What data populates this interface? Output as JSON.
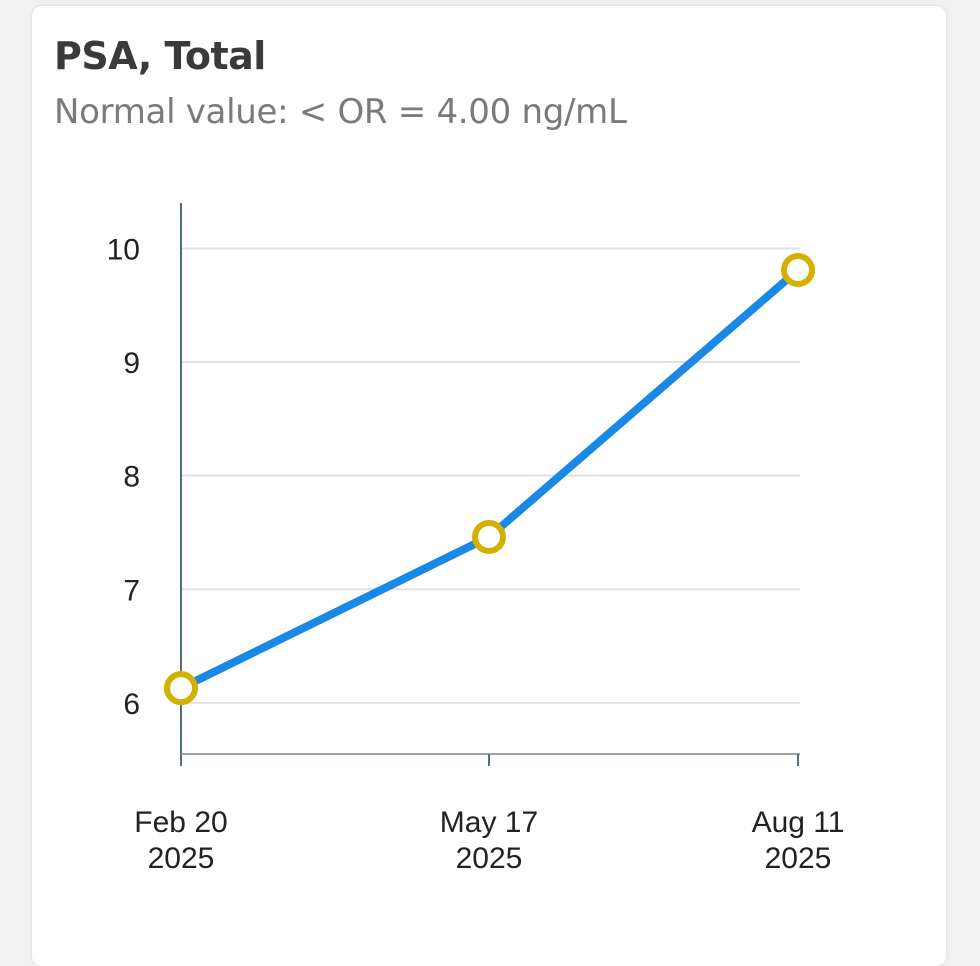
{
  "card": {
    "title": "PSA, Total",
    "subtitle": "Normal value: < OR = 4.00 ng/mL"
  },
  "chart_data": {
    "type": "line",
    "title": "PSA, Total",
    "subtitle": "Normal value: < OR = 4.00 ng/mL",
    "xlabel": "",
    "ylabel": "",
    "x": [
      [
        "Feb 20",
        "2025"
      ],
      [
        "May 17",
        "2025"
      ],
      [
        "Aug 11",
        "2025"
      ]
    ],
    "x_dates": [
      "2025-02-20",
      "2025-05-17",
      "2025-08-11"
    ],
    "y_ticks": [
      6,
      7,
      8,
      9,
      10
    ],
    "ylim": [
      5.55,
      10.4
    ],
    "grid": true,
    "series": [
      {
        "values": [
          6.13,
          7.46,
          9.81
        ],
        "line_color": "#1a88e6",
        "marker_edge_color": "#d4b000",
        "marker_fill_color": "#ffffff"
      }
    ]
  }
}
